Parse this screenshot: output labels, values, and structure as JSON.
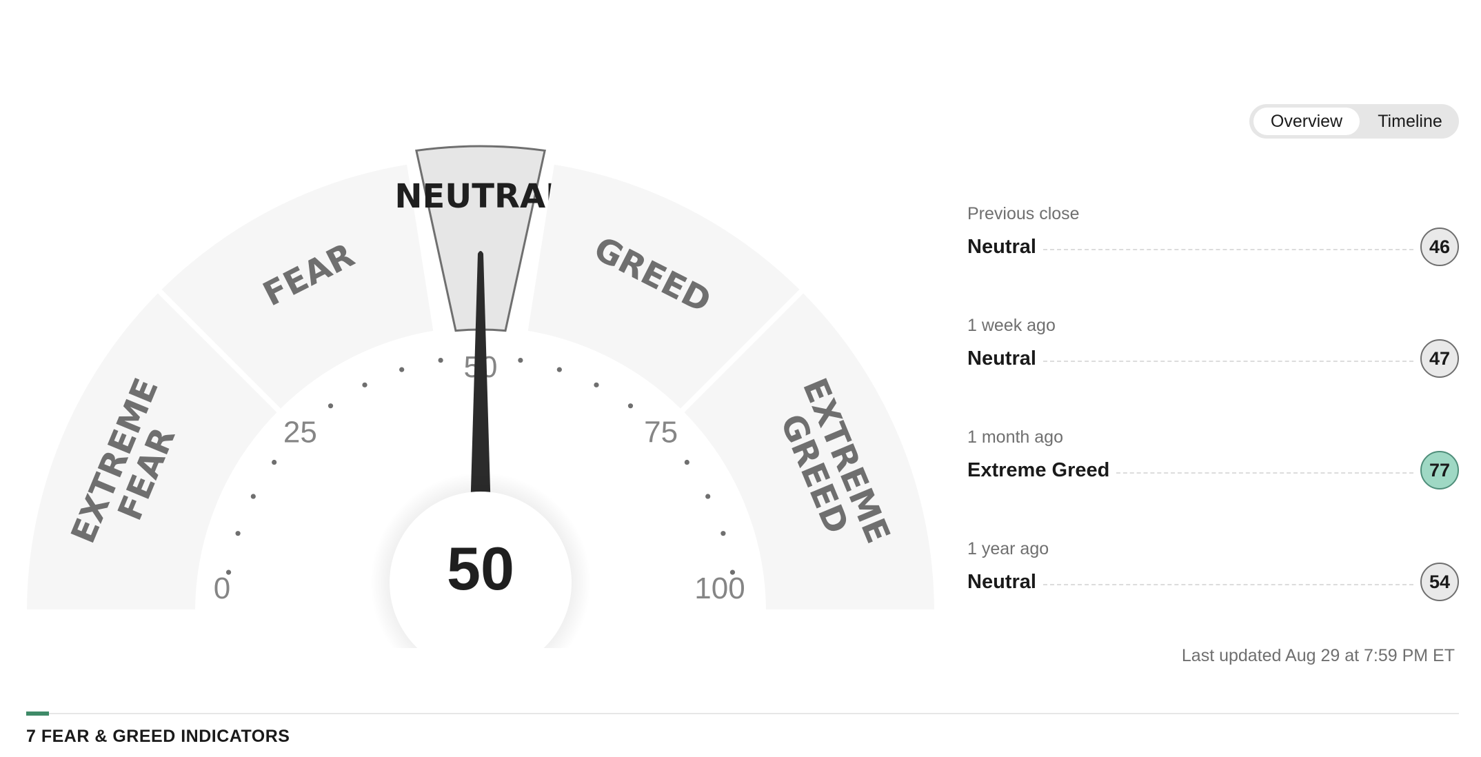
{
  "gauge": {
    "score": 50,
    "score_text": "50",
    "segments": [
      {
        "lines": [
          "EXTREME",
          "FEAR"
        ],
        "active": false
      },
      {
        "lines": [
          "FEAR"
        ],
        "active": false
      },
      {
        "lines": [
          "NEUTRAL"
        ],
        "active": true
      },
      {
        "lines": [
          "GREED"
        ],
        "active": false
      },
      {
        "lines": [
          "EXTREME",
          "GREED"
        ],
        "active": false
      }
    ],
    "scale_labels": [
      {
        "value": 0,
        "text": "0"
      },
      {
        "value": 25,
        "text": "25"
      },
      {
        "value": 50,
        "text": "50"
      },
      {
        "value": 75,
        "text": "75"
      },
      {
        "value": 100,
        "text": "100"
      }
    ]
  },
  "toggle": {
    "overview_label": "Overview",
    "timeline_label": "Timeline"
  },
  "history": [
    {
      "label": "Previous close",
      "rating": "Neutral",
      "value": "46",
      "tone": "neutral"
    },
    {
      "label": "1 week ago",
      "rating": "Neutral",
      "value": "47",
      "tone": "neutral"
    },
    {
      "label": "1 month ago",
      "rating": "Extreme Greed",
      "value": "77",
      "tone": "greed"
    },
    {
      "label": "1 year ago",
      "rating": "Neutral",
      "value": "54",
      "tone": "neutral"
    }
  ],
  "last_updated": "Last updated Aug 29 at 7:59 PM ET",
  "section_title": "7 FEAR & GREED INDICATORS",
  "colors": {
    "segment": "#f6f6f6",
    "active_segment": "#e6e6e6",
    "needle": "#2b2b2b",
    "greed_badge": "#9fd8c4",
    "accent": "#3f8a68"
  }
}
